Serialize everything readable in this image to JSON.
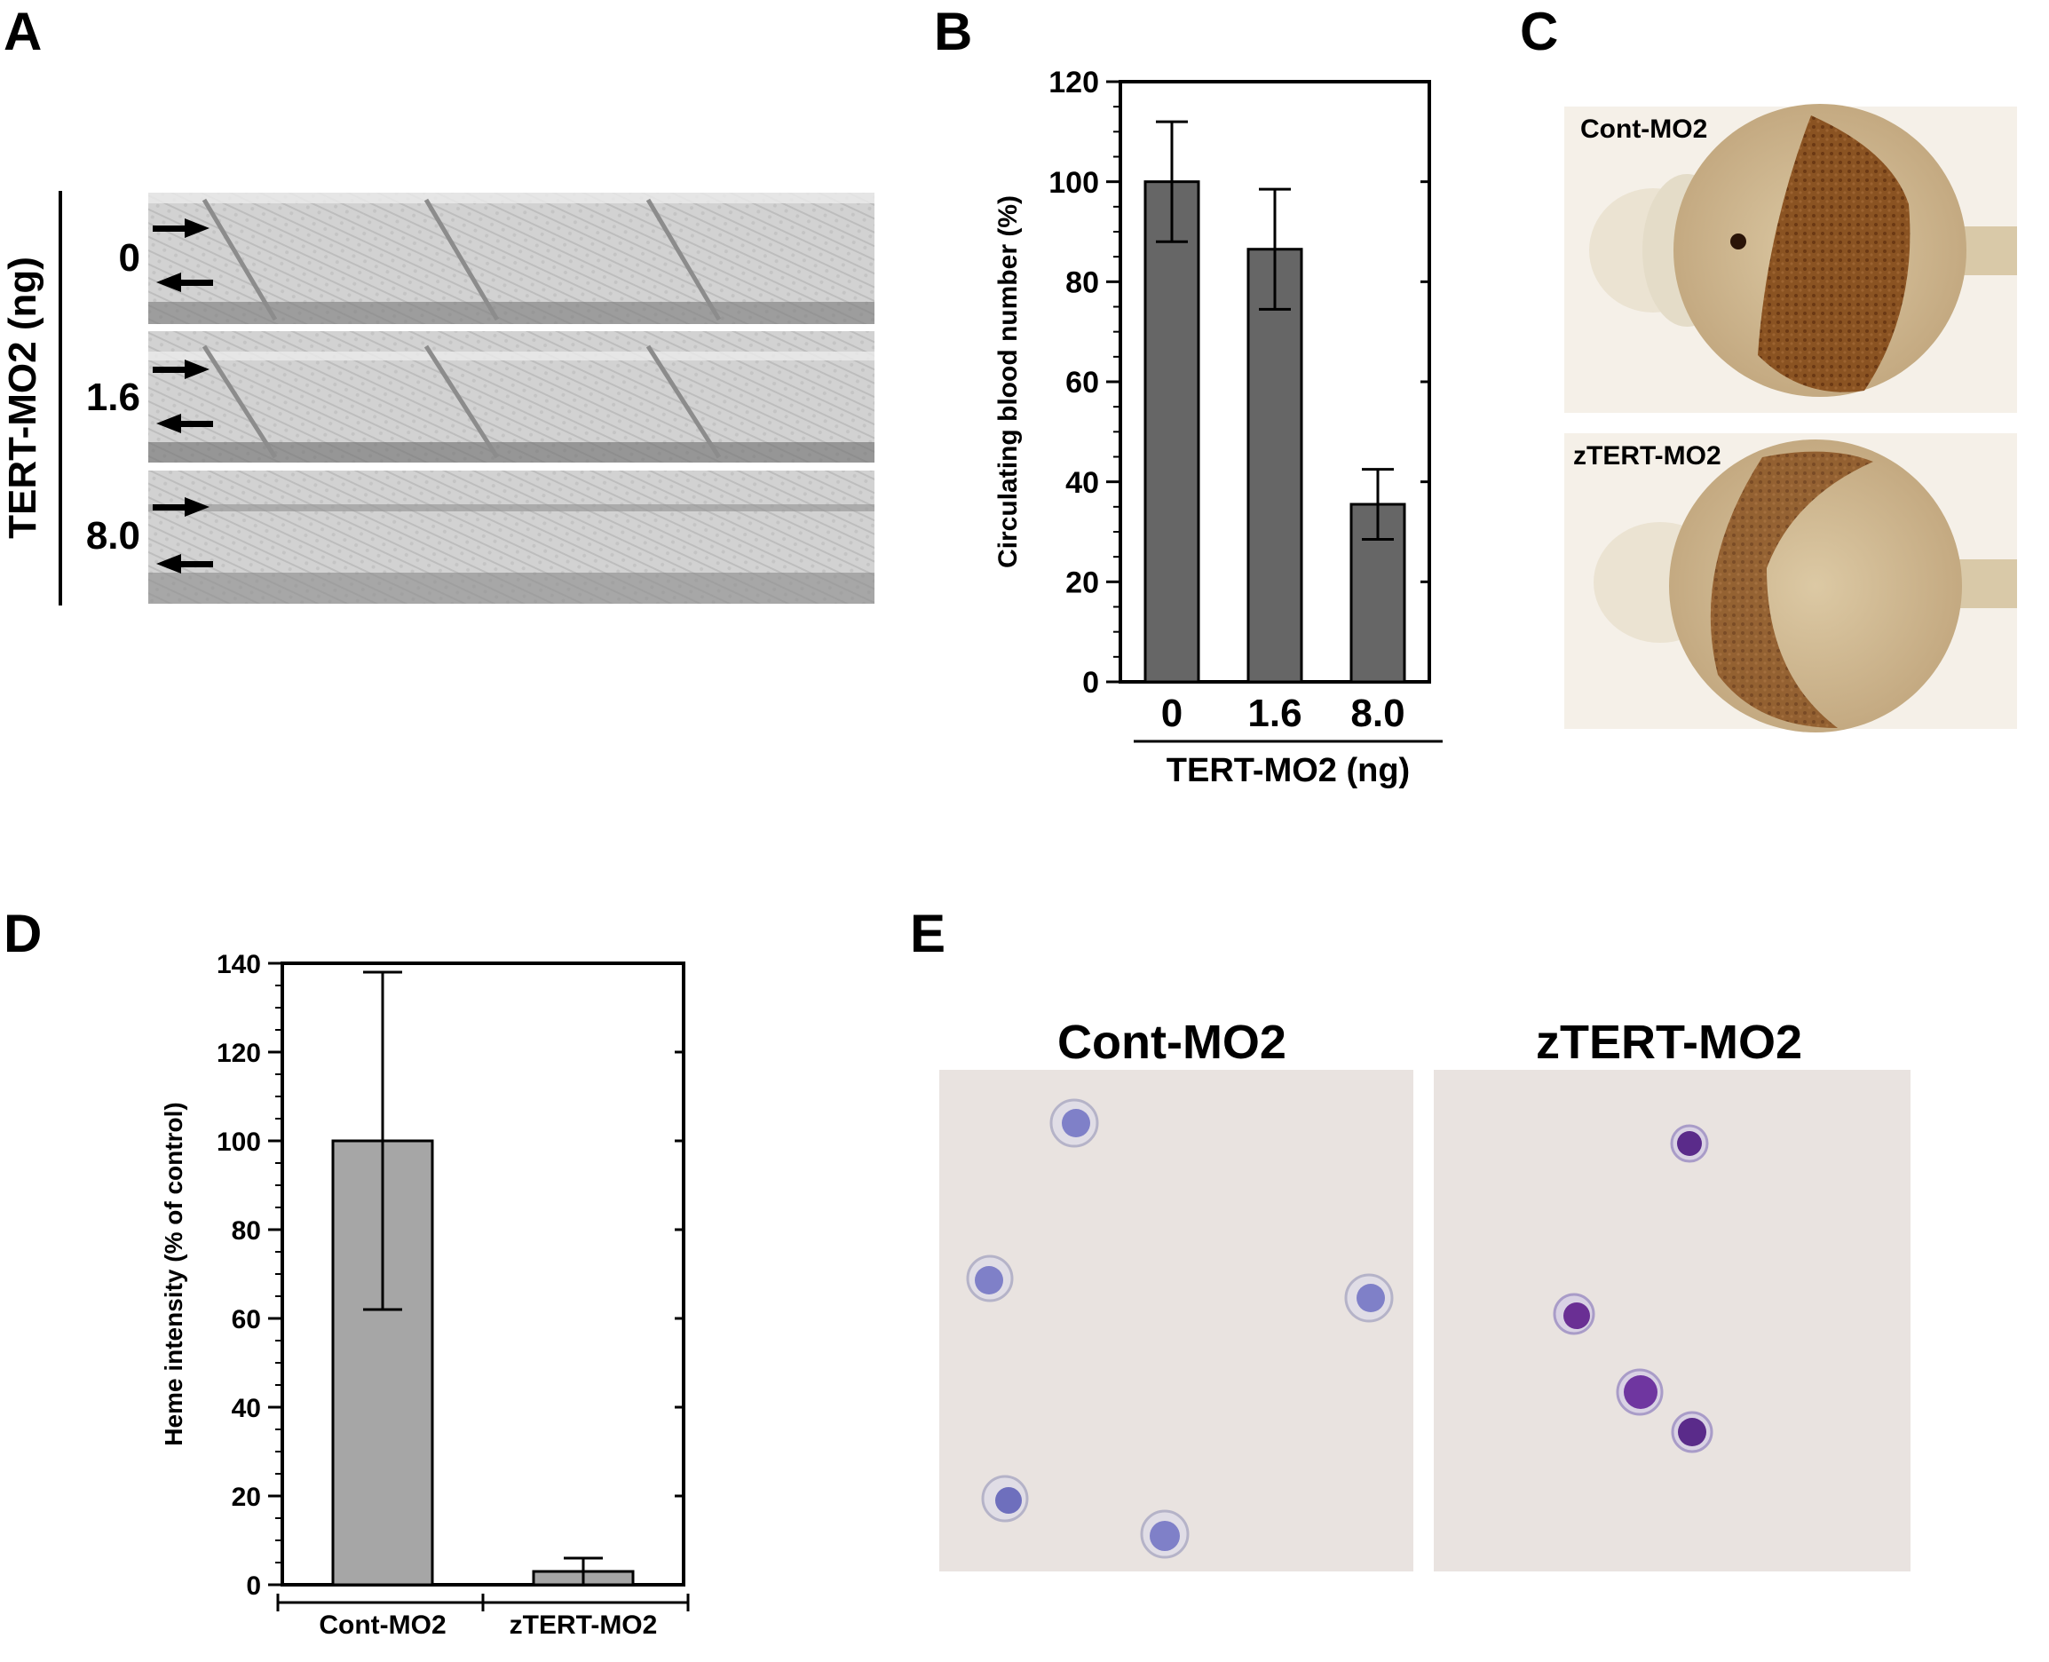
{
  "panels": {
    "A": {
      "letter": "A",
      "axis_label": "TERT-MO2 (ng)",
      "row_labels": [
        "0",
        "1.6",
        "8.0"
      ]
    },
    "B": {
      "letter": "B"
    },
    "C": {
      "letter": "C",
      "labels": [
        "Cont-MO2",
        "zTERT-MO2"
      ]
    },
    "D": {
      "letter": "D"
    },
    "E": {
      "letter": "E",
      "labels": [
        "Cont-MO2",
        "zTERT-MO2"
      ]
    }
  },
  "colors": {
    "bar_B": "#666666",
    "bar_D": "#a6a6a6",
    "embryo_stain": "#7a4418",
    "cell_cont": "#7f80c8",
    "cell_zTERT": "#5a2b8a",
    "smear_bg": "#e9e3e0"
  },
  "chart_data": [
    {
      "panel": "B",
      "type": "bar",
      "categories": [
        "0",
        "1.6",
        "8.0"
      ],
      "values": [
        100,
        86.5,
        35.5
      ],
      "errors": [
        12,
        12,
        7
      ],
      "ylabel": "Circulating blood number (%)",
      "xlabel": "TERT-MO2 (ng)",
      "ylim": [
        0,
        120
      ],
      "yticks": [
        0,
        20,
        40,
        60,
        80,
        100,
        120
      ],
      "grid": false
    },
    {
      "panel": "D",
      "type": "bar",
      "categories": [
        "Cont-MO2",
        "zTERT-MO2"
      ],
      "values": [
        100,
        3
      ],
      "errors": [
        38,
        3
      ],
      "ylabel": "Heme intensity (% of control)",
      "xlabel": "",
      "ylim": [
        0,
        140
      ],
      "yticks": [
        0,
        20,
        40,
        60,
        80,
        100,
        120,
        140
      ],
      "grid": false
    }
  ]
}
